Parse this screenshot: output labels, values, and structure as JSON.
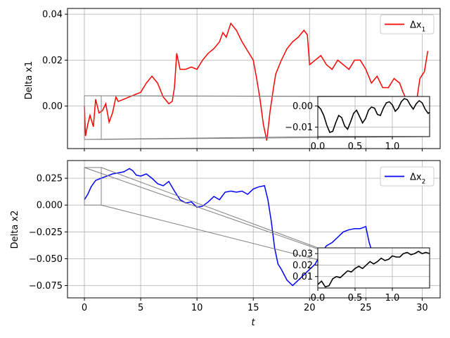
{
  "chart_data": [
    {
      "type": "line",
      "ylabel": "Delta x1",
      "xlabel": "",
      "xlim": [
        -1.5,
        31.6
      ],
      "ylim": [
        -0.0185,
        0.0425
      ],
      "xticks": [
        0,
        5,
        10,
        15,
        20,
        25,
        30
      ],
      "yticks": [
        0.0,
        0.02,
        0.04
      ],
      "ytick_labels": [
        "0.00",
        "0.02",
        "0.04"
      ],
      "grid": true,
      "legend_position": "top-right",
      "series": [
        {
          "name": "Δx",
          "name_sub": "1",
          "color": "#ff0000",
          "x": [
            0.0,
            0.1,
            0.3,
            0.5,
            0.8,
            1.0,
            1.3,
            1.6,
            1.9,
            2.2,
            2.5,
            2.8,
            3.0,
            3.5,
            4.0,
            4.5,
            5.0,
            5.5,
            6.0,
            6.5,
            7.0,
            7.5,
            7.8,
            8.0,
            8.2,
            8.5,
            9.0,
            9.5,
            10.0,
            10.5,
            11.0,
            11.5,
            12.0,
            12.3,
            12.6,
            13.0,
            13.5,
            14.0,
            14.5,
            15.0,
            15.3,
            15.6,
            15.9,
            16.2,
            16.5,
            16.8,
            17.0,
            17.5,
            18.0,
            18.5,
            19.0,
            19.5,
            19.8,
            20.0,
            20.5,
            21.0,
            21.5,
            22.0,
            22.5,
            23.0,
            23.5,
            24.0,
            24.5,
            25.0,
            25.5,
            26.0,
            26.5,
            27.0,
            27.5,
            28.0,
            28.3,
            28.6,
            29.0,
            29.5,
            29.8,
            30.2,
            30.5
          ],
          "y": [
            0.0,
            -0.013,
            -0.008,
            -0.004,
            -0.009,
            0.003,
            -0.003,
            -0.002,
            0.001,
            -0.007,
            -0.003,
            0.004,
            0.002,
            0.003,
            0.004,
            0.005,
            0.006,
            0.01,
            0.013,
            0.01,
            0.004,
            0.001,
            0.002,
            0.008,
            0.023,
            0.016,
            0.016,
            0.017,
            0.016,
            0.02,
            0.023,
            0.025,
            0.028,
            0.032,
            0.03,
            0.036,
            0.033,
            0.028,
            0.024,
            0.02,
            0.012,
            0.003,
            -0.008,
            -0.015,
            -0.002,
            0.008,
            0.014,
            0.02,
            0.025,
            0.028,
            0.03,
            0.033,
            0.031,
            0.018,
            0.02,
            0.022,
            0.018,
            0.016,
            0.02,
            0.018,
            0.016,
            0.02,
            0.02,
            0.016,
            0.01,
            0.013,
            0.008,
            0.008,
            0.012,
            0.01,
            0.006,
            0.003,
            -0.003,
            0.002,
            0.012,
            0.015,
            0.024
          ]
        }
      ],
      "inset": {
        "xlim": [
          0,
          1.5
        ],
        "ylim": [
          -0.0145,
          0.0045
        ],
        "xticks": [
          0.0,
          0.5,
          1.0
        ],
        "xtick_labels": [
          "0.0",
          "0.5",
          "1.0"
        ],
        "yticks": [
          0.0,
          -0.01
        ],
        "ytick_labels": [
          "0.00",
          "−0.01"
        ],
        "grid": true,
        "series_color": "#000000",
        "x": [
          0.0,
          0.04,
          0.08,
          0.12,
          0.16,
          0.2,
          0.24,
          0.28,
          0.32,
          0.36,
          0.4,
          0.44,
          0.48,
          0.52,
          0.56,
          0.6,
          0.64,
          0.68,
          0.72,
          0.76,
          0.8,
          0.84,
          0.88,
          0.92,
          0.96,
          1.0,
          1.04,
          1.08,
          1.12,
          1.16,
          1.2,
          1.24,
          1.28,
          1.32,
          1.36,
          1.4,
          1.44,
          1.48,
          1.5
        ],
        "y": [
          0.0,
          -0.0015,
          -0.0045,
          -0.009,
          -0.0125,
          -0.012,
          -0.008,
          -0.0045,
          -0.0055,
          -0.0095,
          -0.011,
          -0.0075,
          -0.0035,
          -0.002,
          -0.005,
          -0.008,
          -0.006,
          -0.002,
          -0.0005,
          -0.001,
          -0.004,
          -0.0045,
          -0.001,
          0.0015,
          0.002,
          0.0005,
          -0.0025,
          -0.001,
          0.002,
          0.0035,
          0.003,
          0.0005,
          -0.0015,
          0.001,
          0.0025,
          0.0015,
          -0.0015,
          -0.0035,
          -0.003
        ]
      }
    },
    {
      "type": "line",
      "ylabel": "Delta x2",
      "xlabel": "t",
      "xlim": [
        -1.5,
        31.6
      ],
      "ylim": [
        -0.0865,
        0.0415
      ],
      "xticks": [
        0,
        5,
        10,
        15,
        20,
        25,
        30
      ],
      "yticks": [
        0.025,
        0.0,
        -0.025,
        -0.05,
        -0.075
      ],
      "ytick_labels": [
        "0.025",
        "0.000",
        "−0.025",
        "−0.050",
        "−0.075"
      ],
      "grid": true,
      "legend_position": "top-right",
      "series": [
        {
          "name": "Δx",
          "name_sub": "2",
          "color": "#0000ff",
          "x": [
            0.0,
            0.3,
            0.6,
            1.0,
            1.5,
            2.0,
            2.5,
            3.0,
            3.5,
            4.0,
            4.3,
            4.6,
            5.0,
            5.5,
            6.0,
            6.5,
            7.0,
            7.5,
            8.0,
            8.5,
            9.0,
            9.5,
            10.0,
            10.5,
            11.0,
            11.5,
            12.0,
            12.5,
            13.0,
            13.5,
            14.0,
            14.5,
            15.0,
            15.5,
            16.0,
            16.3,
            16.6,
            16.9,
            17.2,
            17.5,
            18.0,
            18.5,
            19.0,
            19.5,
            20.0,
            20.5,
            21.0,
            21.5,
            22.0,
            22.5,
            23.0,
            23.5,
            24.0,
            24.5,
            25.0,
            25.3,
            25.6,
            26.0
          ],
          "y": [
            0.005,
            0.01,
            0.017,
            0.023,
            0.025,
            0.027,
            0.029,
            0.03,
            0.031,
            0.034,
            0.032,
            0.028,
            0.027,
            0.029,
            0.025,
            0.02,
            0.018,
            0.022,
            0.013,
            0.005,
            0.002,
            0.003,
            -0.002,
            -0.001,
            0.003,
            0.008,
            0.005,
            0.012,
            0.013,
            0.012,
            0.013,
            0.01,
            0.015,
            0.017,
            0.018,
            0.005,
            -0.015,
            -0.04,
            -0.055,
            -0.06,
            -0.07,
            -0.075,
            -0.07,
            -0.065,
            -0.06,
            -0.055,
            -0.045,
            -0.038,
            -0.035,
            -0.03,
            -0.025,
            -0.023,
            -0.022,
            -0.022,
            -0.02,
            -0.035,
            -0.045,
            -0.05
          ]
        }
      ],
      "inset": {
        "xlim": [
          0,
          1.5
        ],
        "ylim": [
          0.0,
          0.035
        ],
        "xticks": [
          0.0,
          0.5,
          1.0
        ],
        "xtick_labels": [
          "0.0",
          "0.5",
          "1.0"
        ],
        "yticks": [
          0.01,
          0.02,
          0.03
        ],
        "ytick_labels": [
          "0.01",
          "0.02",
          "0.03"
        ],
        "grid": true,
        "series_color": "#000000",
        "x": [
          0.0,
          0.05,
          0.1,
          0.15,
          0.2,
          0.25,
          0.3,
          0.35,
          0.4,
          0.45,
          0.5,
          0.55,
          0.6,
          0.65,
          0.7,
          0.75,
          0.8,
          0.85,
          0.9,
          0.95,
          1.0,
          1.05,
          1.1,
          1.15,
          1.2,
          1.25,
          1.3,
          1.35,
          1.4,
          1.45,
          1.5
        ],
        "y": [
          0.003,
          0.006,
          0.001,
          0.002,
          0.008,
          0.01,
          0.009,
          0.012,
          0.015,
          0.014,
          0.017,
          0.019,
          0.017,
          0.02,
          0.023,
          0.021,
          0.023,
          0.026,
          0.024,
          0.025,
          0.028,
          0.027,
          0.027,
          0.03,
          0.031,
          0.029,
          0.03,
          0.032,
          0.03,
          0.031,
          0.03
        ]
      }
    }
  ]
}
